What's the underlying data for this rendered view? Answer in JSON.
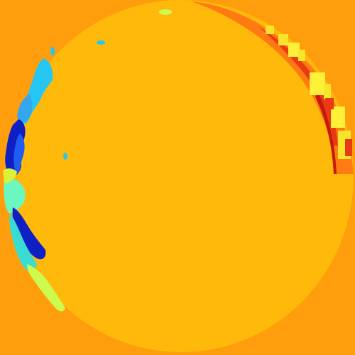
{
  "image": {
    "kind": "false-color segmentation map",
    "colors": {
      "background": "#ff9e0c",
      "disk": "#ffb90a",
      "rim_orange": "#ff7a12",
      "rim_red": "#e83a14",
      "deep_red": "#c8180c",
      "yellow": "#f6e52a",
      "yellow_light": "#fff03a",
      "yellow_green": "#d9f23a",
      "cyan": "#25c7f2",
      "light_blue": "#33a6ee",
      "blue": "#1f5cf0",
      "dark_blue": "#0e1fc4",
      "aquamarine": "#6cf7c0",
      "teal": "#3adcd2",
      "lime": "#cdfa4e"
    },
    "regions": [
      "left-edge-blue-bands",
      "right-edge-red-yellow-bands",
      "top-small-blobs",
      "interior-speck"
    ]
  }
}
